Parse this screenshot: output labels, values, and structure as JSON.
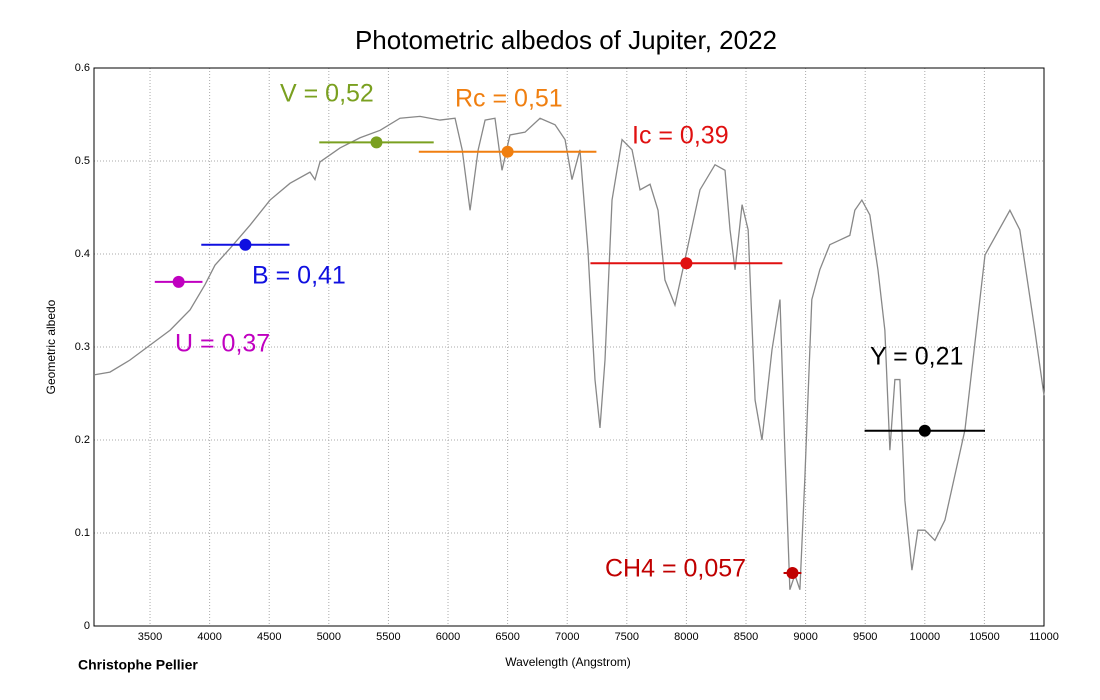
{
  "chart_data": {
    "type": "line",
    "title": "Photometric albedos of Jupiter, 2022",
    "xlabel": "Wavelength (Angstrom)",
    "ylabel": "Geometric albedo",
    "credit": "Christophe Pellier",
    "xlim": [
      3030,
      11000
    ],
    "ylim": [
      0,
      0.6
    ],
    "xticks": [
      3500,
      4000,
      4500,
      5000,
      5500,
      6000,
      6500,
      7000,
      7500,
      8000,
      8500,
      9000,
      9500,
      10000,
      10500,
      11000
    ],
    "yticks": [
      0,
      0.1,
      0.2,
      0.3,
      0.4,
      0.5,
      0.6
    ],
    "grid": true,
    "series": [
      {
        "name": "Geometric albedo",
        "color": "#888888",
        "x": [
          3030,
          3164,
          3332,
          3500,
          3668,
          3836,
          3961,
          4045,
          4171,
          4339,
          4507,
          4674,
          4842,
          4884,
          4926,
          5094,
          5262,
          5430,
          5597,
          5765,
          5933,
          6059,
          6119,
          6185,
          6253,
          6311,
          6394,
          6453,
          6520,
          6646,
          6772,
          6898,
          6982,
          7040,
          7107,
          7174,
          7233,
          7275,
          7317,
          7376,
          7460,
          7544,
          7611,
          7695,
          7762,
          7820,
          7904,
          7988,
          8114,
          8240,
          8324,
          8366,
          8408,
          8467,
          8518,
          8576,
          8634,
          8718,
          8785,
          8826,
          8868,
          8910,
          8952,
          8993,
          9052,
          9119,
          9203,
          9287,
          9371,
          9413,
          9472,
          9539,
          9607,
          9665,
          9707,
          9749,
          9791,
          9833,
          9892,
          9942,
          10001,
          10085,
          10169,
          10337,
          10505,
          10714,
          10797,
          10923,
          11000
        ],
        "values": [
          0.27,
          0.273,
          0.286,
          0.302,
          0.318,
          0.34,
          0.367,
          0.388,
          0.406,
          0.431,
          0.458,
          0.476,
          0.488,
          0.48,
          0.499,
          0.514,
          0.525,
          0.533,
          0.546,
          0.548,
          0.544,
          0.546,
          0.512,
          0.447,
          0.512,
          0.544,
          0.546,
          0.49,
          0.528,
          0.531,
          0.546,
          0.539,
          0.523,
          0.48,
          0.512,
          0.404,
          0.265,
          0.213,
          0.286,
          0.458,
          0.523,
          0.512,
          0.469,
          0.475,
          0.447,
          0.372,
          0.345,
          0.394,
          0.469,
          0.496,
          0.49,
          0.426,
          0.383,
          0.453,
          0.426,
          0.243,
          0.2,
          0.297,
          0.351,
          0.189,
          0.039,
          0.055,
          0.039,
          0.157,
          0.351,
          0.383,
          0.41,
          0.415,
          0.42,
          0.447,
          0.458,
          0.442,
          0.383,
          0.318,
          0.189,
          0.265,
          0.265,
          0.135,
          0.06,
          0.103,
          0.103,
          0.092,
          0.114,
          0.211,
          0.399,
          0.447,
          0.426,
          0.318,
          0.248
        ]
      }
    ],
    "photometry": {
      "x": [
        3740,
        4300,
        5400,
        6500,
        8000,
        8890,
        10000
      ],
      "values": [
        0.37,
        0.41,
        0.52,
        0.51,
        0.39,
        0.057,
        0.21
      ],
      "xerr": [
        200,
        370,
        480,
        745,
        805,
        75,
        505
      ],
      "colors": [
        "#c000c0",
        "#1010e0",
        "#7aa020",
        "#f07f10",
        "#e01010",
        "#c00000",
        "#000000"
      ],
      "value_labels": [
        "U = 0,37",
        "B = 0,41",
        "V = 0,52",
        "Rc = 0,51",
        "Ic = 0,39",
        "CH4 = 0,057",
        "Y = 0,21"
      ]
    }
  }
}
